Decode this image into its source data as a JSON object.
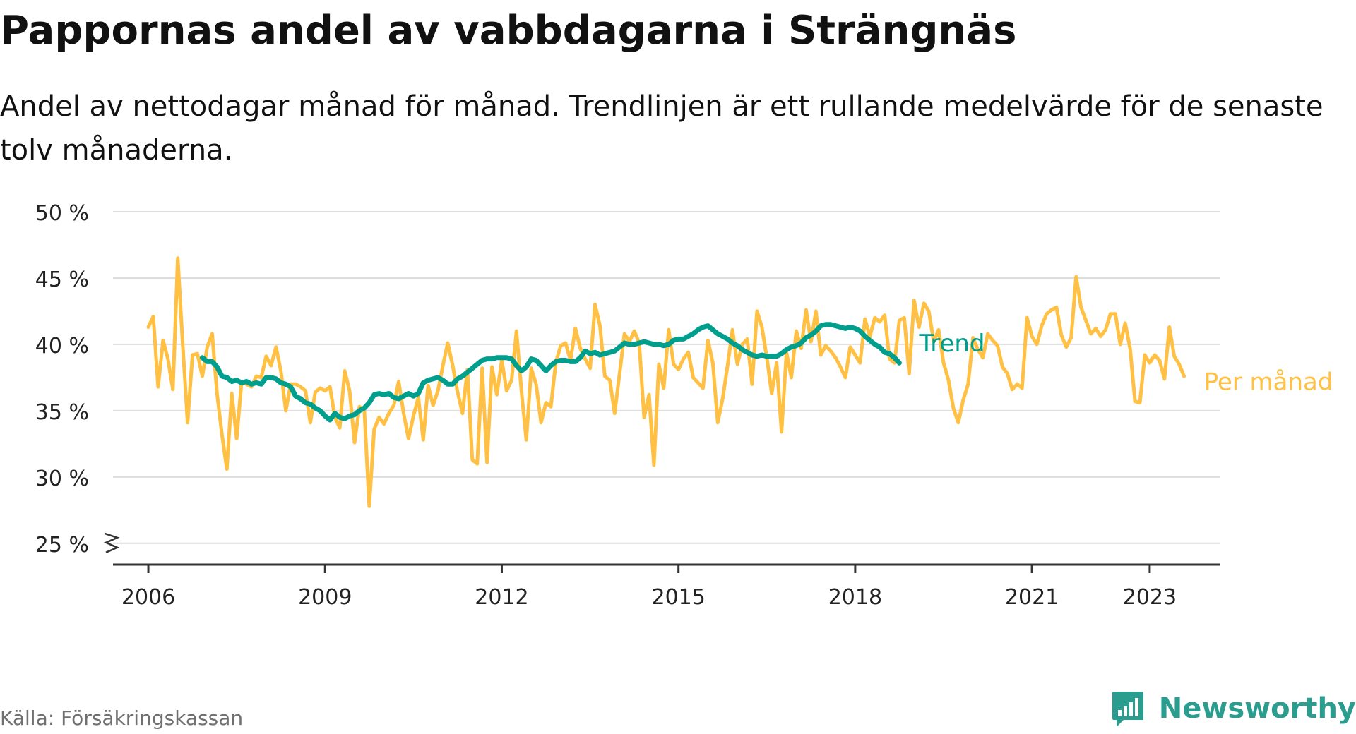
{
  "title": "Pappornas andel av vabbdagarna i Strängnäs",
  "subtitle": "Andel av nettodagar månad för månad. Trendlinjen är ett rullande medelvärde för de senaste tolv månaderna.",
  "source": "Källa: Försäkringskassan",
  "brand": {
    "name": "Newsworthy",
    "logo_icon": "bar-chart-icon"
  },
  "colors": {
    "trend": "#009e8c",
    "monthly": "#ffc043",
    "grid": "#dddddd",
    "axis": "#333333",
    "brand": "#2a9d8f"
  },
  "chart_data": {
    "type": "line",
    "title": "Pappornas andel av vabbdagarna i Strängnäs",
    "xlabel": "",
    "ylabel": "",
    "unit": "%",
    "x_ticks": [
      2006,
      2009,
      2012,
      2015,
      2018,
      2021,
      2023
    ],
    "y_ticks": [
      25,
      30,
      35,
      40,
      45,
      50
    ],
    "y_tick_labels": [
      "25 %",
      "30 %",
      "35 %",
      "40 %",
      "45 %",
      "50 %"
    ],
    "xlim": [
      2005.4,
      2024.2
    ],
    "ylim": [
      23.5,
      50
    ],
    "y_axis_break": true,
    "grid": true,
    "legend": "inline-end",
    "series": [
      {
        "name": "Per månad",
        "start": "2006-01",
        "values": [
          41.3,
          42.1,
          36.8,
          40.3,
          38.9,
          36.6,
          46.5,
          40.0,
          34.1,
          39.2,
          39.3,
          37.6,
          39.8,
          40.8,
          36.3,
          33.2,
          30.6,
          36.3,
          32.9,
          37.2,
          37.0,
          36.8,
          37.6,
          37.5,
          39.1,
          38.4,
          39.8,
          38.0,
          35.0,
          37.0,
          37.0,
          36.8,
          36.5,
          34.1,
          36.4,
          36.7,
          36.5,
          36.8,
          34.5,
          33.7,
          38.0,
          36.5,
          32.6,
          35.3,
          35.0,
          27.8,
          33.6,
          34.5,
          34.0,
          34.8,
          35.4,
          37.2,
          34.8,
          32.9,
          34.6,
          36.0,
          32.8,
          36.9,
          35.4,
          36.5,
          38.4,
          40.1,
          38.4,
          36.4,
          34.8,
          38.1,
          31.3,
          31.0,
          38.2,
          31.1,
          38.3,
          36.2,
          38.8,
          36.5,
          37.3,
          41.0,
          36.5,
          32.8,
          38.2,
          37.0,
          34.1,
          35.6,
          35.3,
          38.6,
          39.9,
          40.1,
          38.8,
          41.2,
          39.7,
          38.9,
          38.2,
          43.0,
          41.4,
          37.6,
          37.3,
          34.8,
          37.8,
          40.8,
          40.2,
          41.0,
          40.1,
          34.5,
          36.2,
          30.9,
          38.5,
          36.7,
          41.1,
          38.5,
          38.1,
          38.9,
          39.4,
          37.5,
          37.1,
          36.7,
          40.3,
          38.6,
          34.1,
          35.9,
          38.4,
          41.1,
          38.5,
          40.0,
          40.4,
          37.0,
          42.5,
          41.3,
          39.0,
          36.3,
          38.6,
          33.4,
          39.4,
          37.5,
          41.0,
          39.7,
          42.6,
          40.2,
          42.5,
          39.2,
          39.9,
          39.5,
          39.0,
          38.3,
          37.5,
          39.8,
          39.2,
          38.6,
          41.9,
          40.6,
          42.0,
          41.7,
          42.2,
          38.9,
          38.6,
          41.8,
          42.0,
          37.8,
          43.3,
          41.3,
          43.1,
          42.5,
          40.2,
          41.1,
          38.6,
          37.3,
          35.2,
          34.1,
          35.8,
          37.0,
          40.5,
          39.6,
          39.0,
          40.8,
          40.3,
          39.9,
          38.3,
          37.8,
          36.6,
          37.0,
          36.7,
          42.0,
          40.6,
          40.0,
          41.4,
          42.3,
          42.6,
          42.8,
          40.7,
          39.8,
          40.5,
          45.1,
          42.8,
          41.8,
          40.8,
          41.2,
          40.6,
          41.1,
          42.3,
          42.3,
          40.0,
          41.6,
          39.7,
          35.7,
          35.6,
          39.2,
          38.6,
          39.2,
          38.8,
          37.4,
          41.3,
          39.1,
          38.5,
          37.6
        ]
      },
      {
        "name": "Trend",
        "start": "2006-12",
        "values": [
          39.0,
          38.7,
          38.7,
          38.3,
          37.6,
          37.5,
          37.2,
          37.3,
          37.1,
          37.2,
          37.0,
          37.1,
          37.0,
          37.5,
          37.5,
          37.4,
          37.1,
          37.0,
          36.8,
          36.1,
          35.9,
          35.6,
          35.5,
          35.2,
          35.0,
          34.6,
          34.3,
          34.8,
          34.5,
          34.4,
          34.6,
          34.7,
          35.0,
          35.2,
          35.6,
          36.2,
          36.3,
          36.2,
          36.3,
          36.0,
          35.9,
          36.1,
          36.3,
          36.1,
          36.3,
          37.1,
          37.3,
          37.4,
          37.5,
          37.3,
          37.0,
          37.0,
          37.4,
          37.6,
          37.9,
          38.2,
          38.5,
          38.8,
          38.9,
          38.9,
          39.0,
          39.0,
          39.0,
          38.9,
          38.4,
          38.0,
          38.3,
          38.9,
          38.8,
          38.4,
          38.0,
          38.4,
          38.7,
          38.8,
          38.8,
          38.7,
          38.7,
          39.0,
          39.5,
          39.3,
          39.4,
          39.2,
          39.3,
          39.4,
          39.5,
          39.8,
          40.1,
          40.0,
          40.0,
          40.1,
          40.2,
          40.1,
          40.0,
          40.0,
          39.9,
          40.0,
          40.3,
          40.4,
          40.4,
          40.6,
          40.8,
          41.1,
          41.3,
          41.4,
          41.1,
          40.8,
          40.6,
          40.4,
          40.1,
          39.9,
          39.6,
          39.4,
          39.2,
          39.1,
          39.2,
          39.1,
          39.1,
          39.1,
          39.3,
          39.6,
          39.8,
          39.9,
          40.1,
          40.5,
          40.7,
          41.0,
          41.4,
          41.5,
          41.5,
          41.4,
          41.3,
          41.2,
          41.3,
          41.2,
          41.0,
          40.6,
          40.3,
          40.0,
          39.8,
          39.4,
          39.3,
          39.0,
          38.6
        ]
      }
    ]
  }
}
